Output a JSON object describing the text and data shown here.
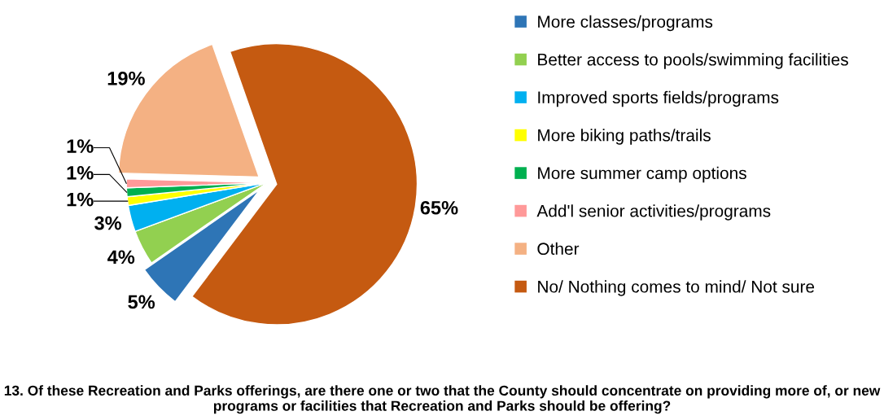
{
  "chart_data": {
    "type": "pie",
    "title": "13. Of these Recreation and Parks offerings, are there one or two that the County should concentrate on providing more of, or new programs or facilities that Recreation and Parks should be offering?",
    "categories": [
      "More classes/programs",
      "Better access to pools/swimming facilities",
      "Improved sports fields/programs",
      "More biking paths/trails",
      "More summer camp options",
      "Add'l senior activities/programs",
      "Other",
      "No/ Nothing comes to mind/ Not sure"
    ],
    "values": [
      5,
      4,
      3,
      1,
      1,
      1,
      19,
      65
    ],
    "value_labels": [
      "5%",
      "4%",
      "3%",
      "1%",
      "1%",
      "1%",
      "19%",
      "65%"
    ],
    "colors": [
      "#2e75b6",
      "#92d050",
      "#00b0f0",
      "#ffff00",
      "#00b050",
      "#ff9999",
      "#f4b183",
      "#c55a11"
    ],
    "legend": "right"
  }
}
